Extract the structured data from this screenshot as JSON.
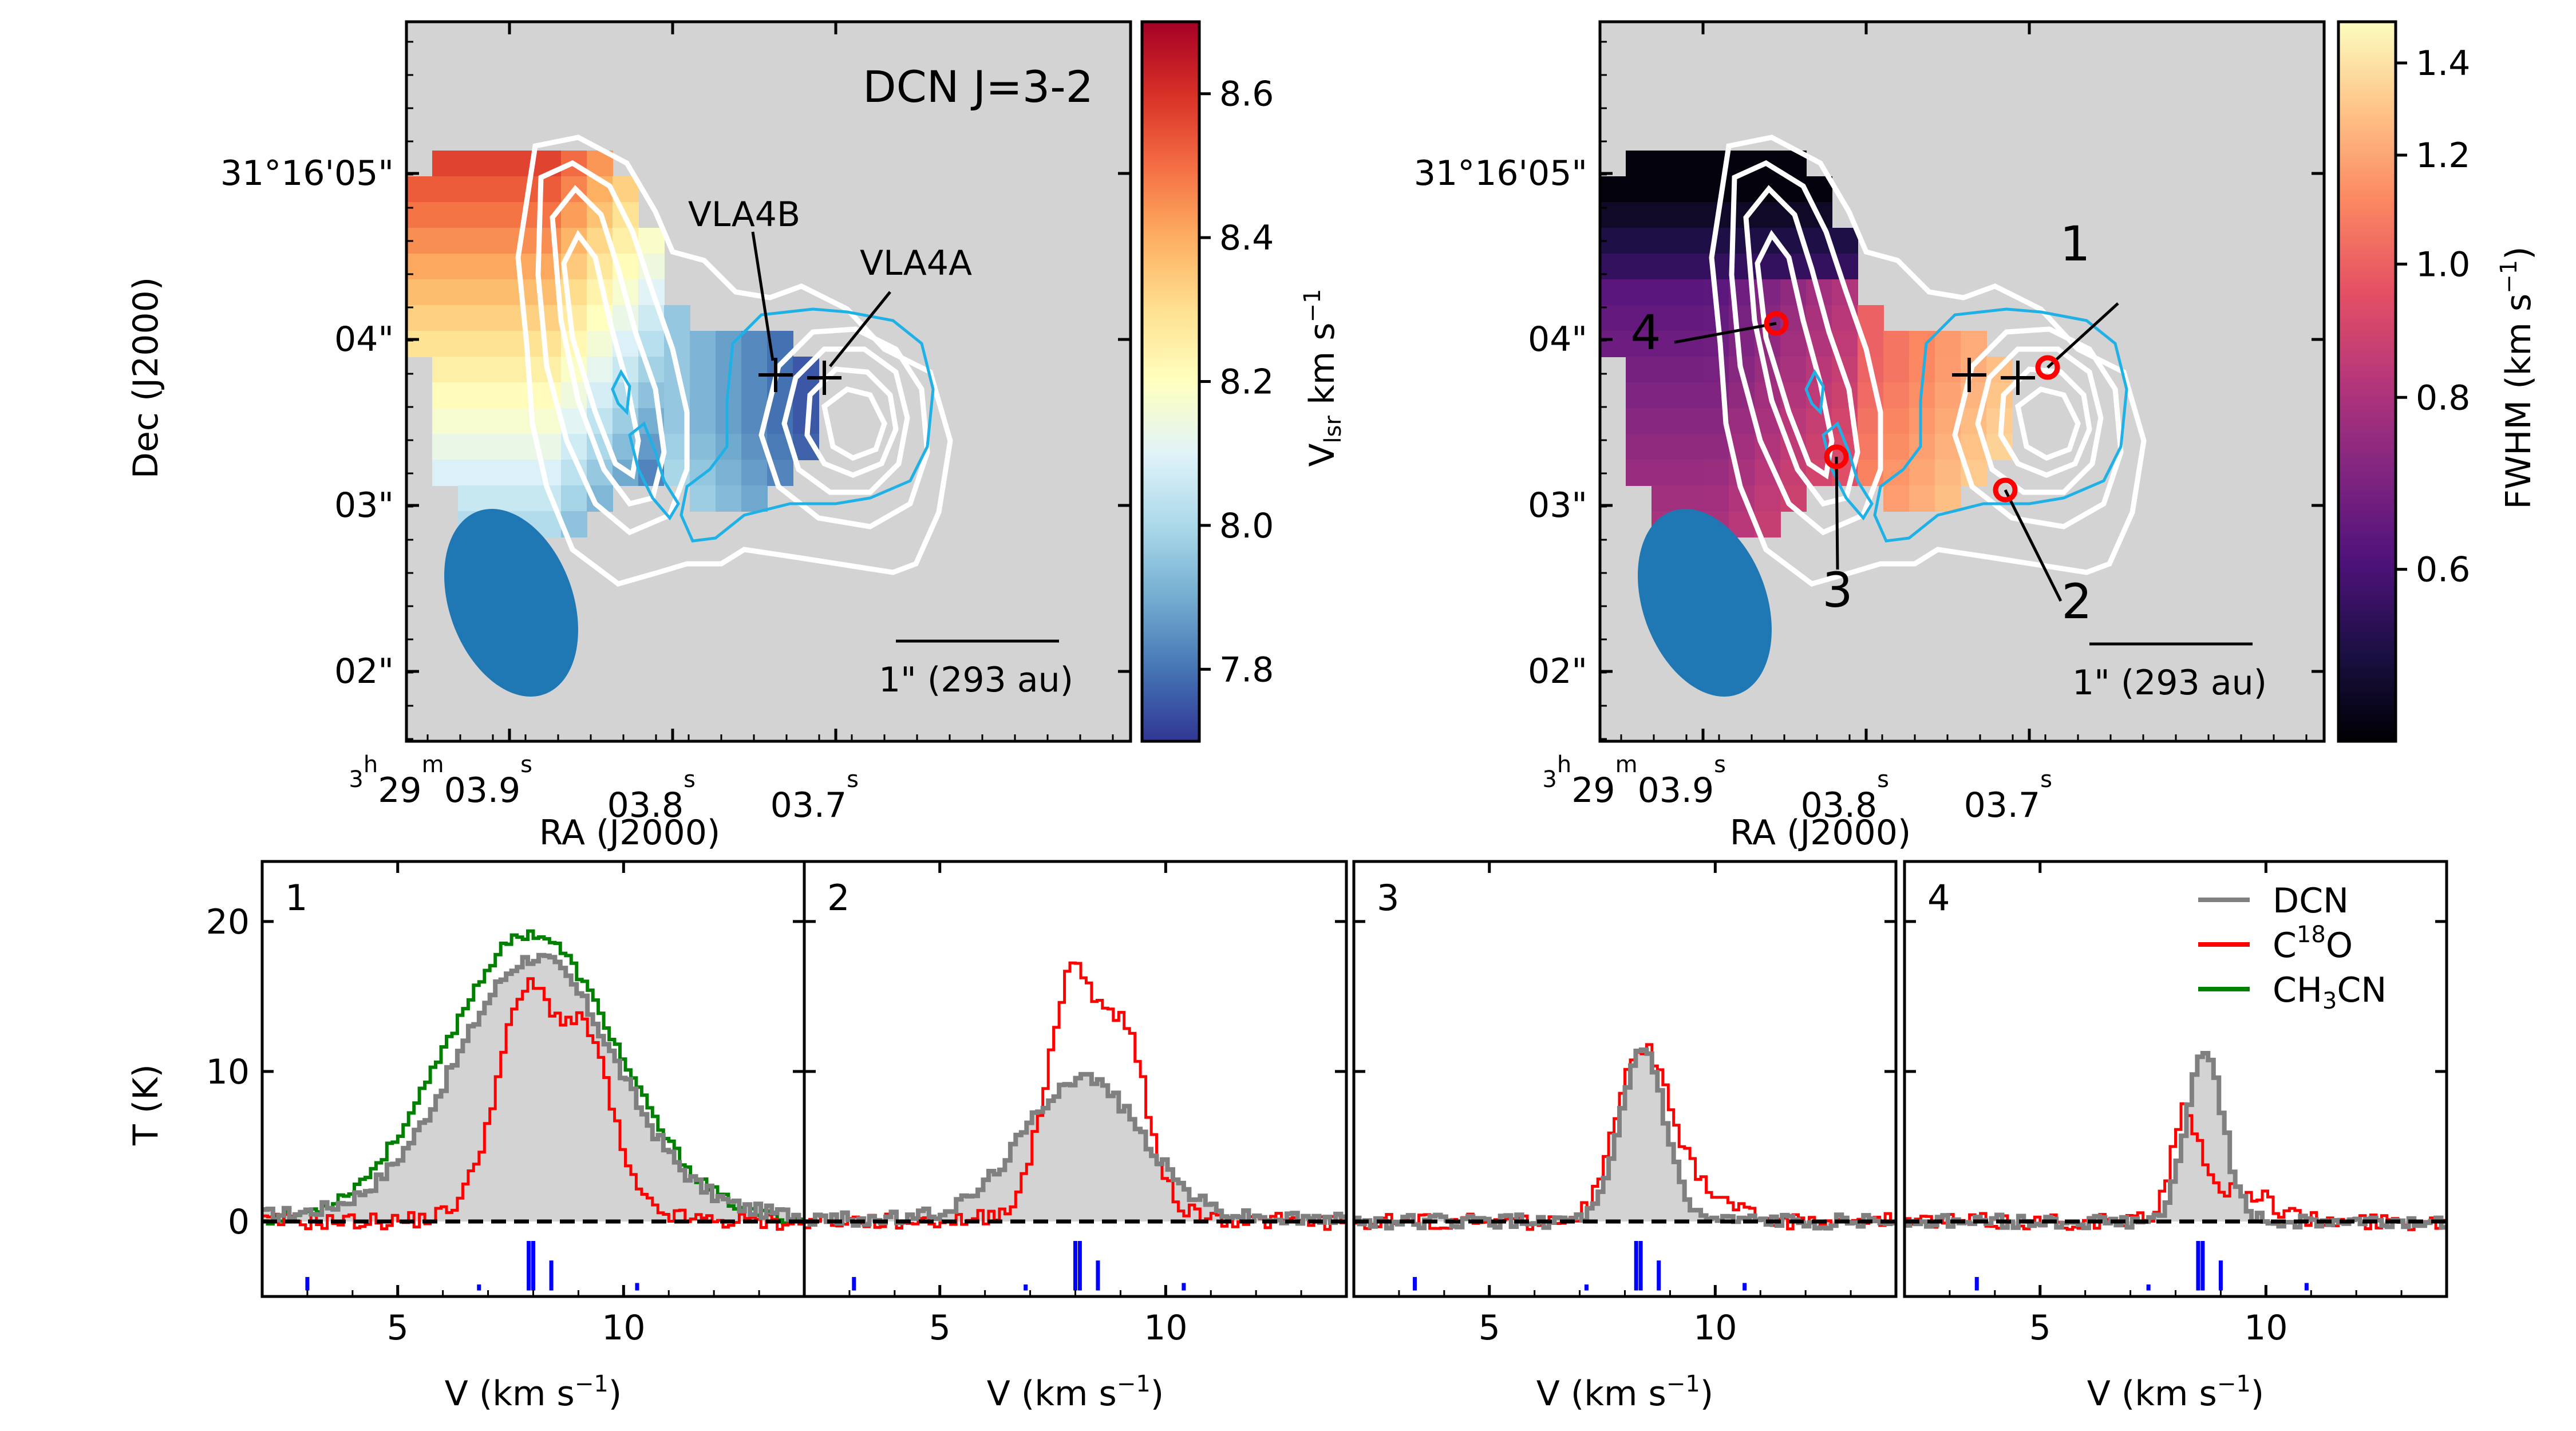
{
  "chart_data": [
    {
      "type": "map",
      "panel": "velocity-map",
      "annotation": "DCN J=3-2",
      "xlabel": "RA (J2000)",
      "ylabel": "Dec (J2000)",
      "x_ticks": [
        {
          "base": "3",
          "b1": "h",
          "mid": "29",
          "b2": "m",
          "tail": "03.9",
          "b3": "s"
        },
        {
          "base": "",
          "b1": "",
          "mid": "",
          "b2": "",
          "tail": "03.8",
          "b3": "s"
        },
        {
          "base": "",
          "b1": "",
          "mid": "",
          "b2": "",
          "tail": "03.7",
          "b3": "s"
        }
      ],
      "y_ticks": [
        "31°16'05\"",
        "04\"",
        "03\"",
        "02\""
      ],
      "colorbar": {
        "label_main": "V",
        "label_sub": "lsr",
        "label_unit": " km s",
        "label_exp": "−1",
        "ticks": [
          "8.6",
          "8.4",
          "8.2",
          "8.0",
          "7.8"
        ],
        "range": [
          7.7,
          8.7
        ],
        "colors": [
          "#313695",
          "#4575b4",
          "#74add1",
          "#abd9e9",
          "#e0f3f8",
          "#ffffbf",
          "#fee090",
          "#fdae61",
          "#f46d43",
          "#d73027",
          "#a50026"
        ]
      },
      "sources": [
        "VLA4B",
        "VLA4A"
      ],
      "scalebar": "1\" (293 au)"
    },
    {
      "type": "map",
      "panel": "fwhm-map",
      "xlabel": "RA (J2000)",
      "y_ticks": [
        "31°16'05\"",
        "04\"",
        "03\"",
        "02\""
      ],
      "x_ticks": [
        {
          "base": "3",
          "b1": "h",
          "mid": "29",
          "b2": "m",
          "tail": "03.9",
          "b3": "s"
        },
        {
          "base": "",
          "b1": "",
          "mid": "",
          "b2": "",
          "tail": "03.8",
          "b3": "s"
        },
        {
          "base": "",
          "b1": "",
          "mid": "",
          "b2": "",
          "tail": "03.7",
          "b3": "s"
        }
      ],
      "colorbar": {
        "label_main": "FWHM (km s",
        "label_exp": "−1",
        "label_end": ")",
        "ticks": [
          "1.4",
          "1.2",
          "1.0",
          "0.8",
          "0.6"
        ],
        "range": [
          0.45,
          1.5
        ],
        "scale": "log",
        "colors": [
          "#000004",
          "#1c1044",
          "#4f127b",
          "#812581",
          "#b5367a",
          "#e55064",
          "#fb8761",
          "#fec287",
          "#fcfdbf"
        ]
      },
      "points": [
        "1",
        "2",
        "3",
        "4"
      ],
      "scalebar": "1\" (293 au)"
    },
    {
      "type": "line",
      "panel": "spectra",
      "xlabel_main": "V (km s",
      "xlabel_exp": "−1",
      "xlabel_end": ")",
      "ylabel": "T (K)",
      "xlim": [
        2,
        14
      ],
      "ylim": [
        -5,
        24
      ],
      "x_ticks": [
        5,
        10
      ],
      "y_ticks": [
        0,
        10,
        20
      ],
      "legend": [
        {
          "label": "DCN",
          "color": "#808080"
        },
        {
          "label_main": "C",
          "label_sup": "18",
          "label_end": "O",
          "color": "#ff0000"
        },
        {
          "label_main": "CH",
          "label_sub": "3",
          "label_end": "CN",
          "color": "#008000"
        }
      ],
      "panels": [
        {
          "label": "1",
          "has_ch3cn": true,
          "dcn": {
            "center": 8.0,
            "amp": 17.2,
            "sigma": 1.75,
            "base": 0.8
          },
          "c18o": [
            {
              "center": 7.8,
              "amp": 12.5,
              "sigma": 0.65
            },
            {
              "center": 9.2,
              "amp": 8.5,
              "sigma": 0.5
            },
            {
              "center": 8.5,
              "amp": 3.5,
              "sigma": 1.2
            }
          ],
          "ch3cn": {
            "center": 7.9,
            "amp": 19.2,
            "sigma": 1.9
          }
        },
        {
          "label": "2",
          "has_ch3cn": false,
          "dcn": {
            "center": 8.1,
            "amp": 9.5,
            "sigma": 1.3,
            "base": 0.3
          },
          "c18o": [
            {
              "center": 7.9,
              "amp": 14.5,
              "sigma": 0.55
            },
            {
              "center": 9.1,
              "amp": 9.5,
              "sigma": 0.45
            },
            {
              "center": 8.5,
              "amp": 2.5,
              "sigma": 1.2
            }
          ]
        },
        {
          "label": "3",
          "has_ch3cn": false,
          "dcn": {
            "center": 8.35,
            "amp": 11.5,
            "sigma": 0.48,
            "base": 0.0
          },
          "c18o": [
            {
              "center": 8.3,
              "amp": 10.5,
              "sigma": 0.55
            },
            {
              "center": 9.3,
              "amp": 2.5,
              "sigma": 0.8
            }
          ]
        },
        {
          "label": "4",
          "has_ch3cn": false,
          "dcn": {
            "center": 8.6,
            "amp": 11.5,
            "sigma": 0.4,
            "base": 0.0
          },
          "c18o": [
            {
              "center": 8.15,
              "amp": 7.0,
              "sigma": 0.3
            },
            {
              "center": 9.3,
              "amp": 2.2,
              "sigma": 0.7
            }
          ]
        }
      ],
      "hfs_lines": [
        {
          "offset": -5.0,
          "height": 0.9
        },
        {
          "offset": -1.2,
          "height": 0.4
        },
        {
          "offset": -0.1,
          "height": 3.3
        },
        {
          "offset": 0.0,
          "height": 3.3
        },
        {
          "offset": 0.4,
          "height": 2.0
        },
        {
          "offset": 2.3,
          "height": 0.5
        }
      ]
    }
  ]
}
